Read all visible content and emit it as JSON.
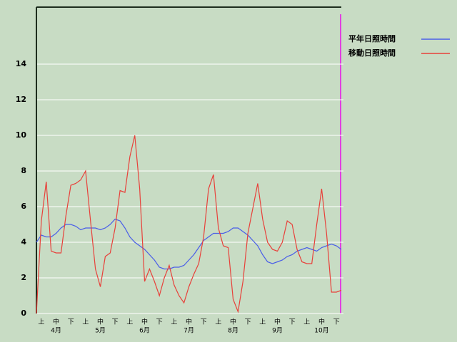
{
  "chart_data": {
    "type": "line",
    "categories": [
      null,
      "上",
      null,
      null,
      "中",
      null,
      null,
      "下",
      null,
      null,
      "上",
      null,
      null,
      "中",
      null,
      null,
      "下",
      null,
      null,
      "上",
      null,
      null,
      "中",
      null,
      null,
      "下",
      null,
      null,
      "上",
      null,
      null,
      "中",
      null,
      null,
      "下",
      null,
      null,
      "上",
      null,
      null,
      "中",
      null,
      null,
      "下",
      null,
      null,
      "上",
      null,
      null,
      "中",
      null,
      null,
      "下",
      null,
      null,
      "上",
      null,
      null,
      "中",
      null,
      null,
      "下",
      null
    ],
    "months": [
      "4月",
      "5月",
      "6月",
      "7月",
      "8月",
      "9月",
      "10月"
    ],
    "series": [
      {
        "name": "平年日照時間",
        "color": "#4a5ee8",
        "values": [
          4.0,
          4.4,
          4.3,
          4.3,
          4.5,
          4.8,
          5.0,
          5.0,
          4.9,
          4.7,
          4.8,
          4.8,
          4.8,
          4.7,
          4.8,
          5.0,
          5.3,
          5.2,
          4.8,
          4.3,
          4.0,
          3.8,
          3.6,
          3.3,
          3.0,
          2.6,
          2.5,
          2.5,
          2.6,
          2.6,
          2.7,
          3.0,
          3.3,
          3.7,
          4.1,
          4.3,
          4.5,
          4.5,
          4.5,
          4.6,
          4.8,
          4.8,
          4.6,
          4.4,
          4.1,
          3.8,
          3.3,
          2.9,
          2.8,
          2.9,
          3.0,
          3.2,
          3.3,
          3.5,
          3.6,
          3.7,
          3.6,
          3.5,
          3.7,
          3.8,
          3.9,
          3.8,
          3.6
        ]
      },
      {
        "name": "移動日照時間",
        "color": "#e8403a",
        "values": [
          0,
          5.2,
          7.4,
          3.5,
          3.4,
          3.4,
          5.5,
          7.2,
          7.3,
          7.5,
          8.0,
          5.2,
          2.5,
          1.5,
          3.2,
          3.4,
          4.8,
          6.9,
          6.8,
          8.8,
          10.0,
          7.0,
          1.8,
          2.5,
          1.8,
          1.0,
          2.0,
          2.7,
          1.6,
          1.0,
          0.6,
          1.5,
          2.2,
          2.8,
          4.3,
          7.0,
          7.8,
          4.8,
          3.8,
          3.7,
          0.8,
          0.1,
          1.8,
          4.5,
          5.9,
          7.3,
          5.3,
          4.0,
          3.6,
          3.5,
          4.0,
          5.2,
          5.0,
          3.6,
          2.9,
          2.8,
          2.8,
          5.0,
          7.0,
          4.5,
          1.2,
          1.2,
          1.3
        ]
      }
    ],
    "ylim": [
      0,
      17.2
    ],
    "yticks": [
      0,
      2,
      4,
      6,
      8,
      10,
      12,
      14
    ],
    "grid": true,
    "legend": "right"
  }
}
